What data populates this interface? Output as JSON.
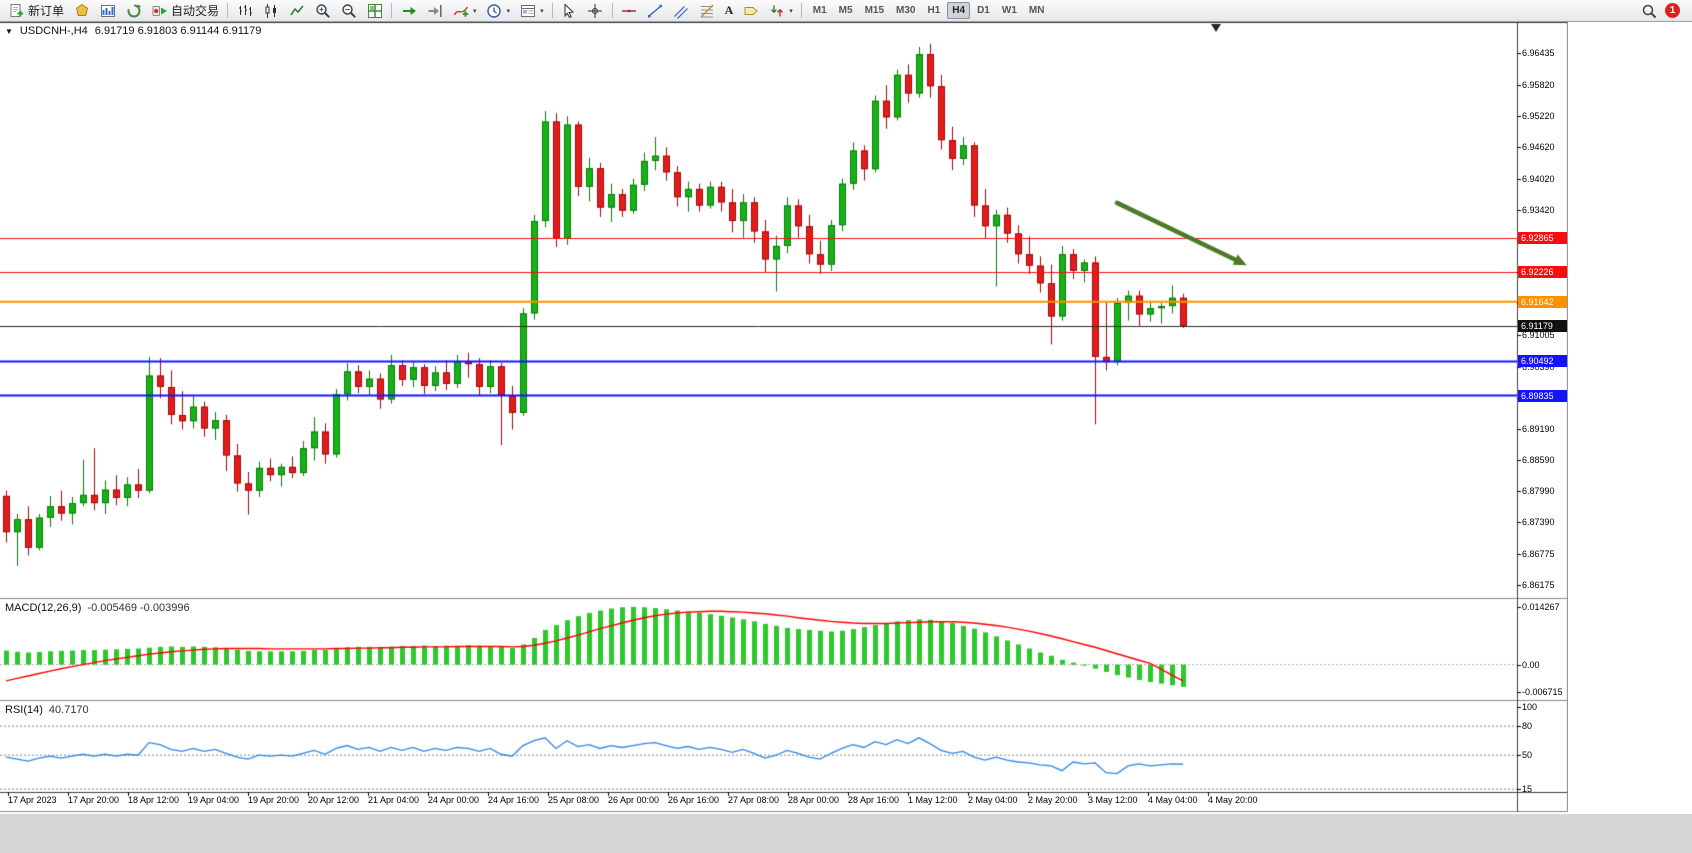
{
  "toolbar": {
    "new_order_label": "新订单",
    "autotrading_label": "自动交易",
    "text_tool_label": "A",
    "timeframes": [
      "M1",
      "M5",
      "M15",
      "M30",
      "H1",
      "H4",
      "D1",
      "W1",
      "MN"
    ],
    "active_timeframe": "H4",
    "notification_badge": "1"
  },
  "chart": {
    "symbol_period": "USDCNH-,H4",
    "ohlc_readout": "6.91719 6.91803 6.91144 6.91179"
  },
  "indicators": {
    "macd": {
      "label": "MACD(12,26,9)",
      "values": "-0.005469 -0.003996",
      "axis_labels": [
        "0.014267",
        "0.00",
        "-0.006715"
      ]
    },
    "rsi": {
      "label": "RSI(14)",
      "value": "40.7170",
      "axis_labels": [
        "100",
        "80",
        "50",
        "15"
      ]
    }
  },
  "chart_data": {
    "type": "candlestick",
    "symbol": "USDCNH-",
    "timeframe": "H4",
    "price_range": {
      "max": 6.97,
      "min": 6.8595
    },
    "price_axis_labels": [
      "6.96435",
      "6.95820",
      "6.95220",
      "6.94620",
      "6.94020",
      "6.93420",
      "6.92820",
      "6.92220",
      "6.91620",
      "6.91005",
      "6.90390",
      "6.89790",
      "6.89190",
      "6.88590",
      "6.87990",
      "6.87390",
      "6.86775",
      "6.86175"
    ],
    "time_axis_labels": [
      "17 Apr 2023",
      "17 Apr 20:00",
      "18 Apr 12:00",
      "19 Apr 04:00",
      "19 Apr 20:00",
      "20 Apr 12:00",
      "21 Apr 04:00",
      "24 Apr 00:00",
      "24 Apr 16:00",
      "25 Apr 08:00",
      "26 Apr 00:00",
      "26 Apr 16:00",
      "27 Apr 08:00",
      "28 Apr 00:00",
      "28 Apr 16:00",
      "1 May 12:00",
      "2 May 04:00",
      "2 May 20:00",
      "3 May 12:00",
      "4 May 04:00",
      "4 May 20:00"
    ],
    "candles": [
      [
        6.879,
        6.88,
        6.87,
        6.872
      ],
      [
        6.872,
        6.8755,
        6.8655,
        6.8745
      ],
      [
        6.8745,
        6.877,
        6.8675,
        6.869
      ],
      [
        6.869,
        6.8755,
        6.8685,
        6.8748
      ],
      [
        6.8748,
        6.879,
        6.873,
        6.877
      ],
      [
        6.877,
        6.88,
        6.8742,
        6.8756
      ],
      [
        6.8756,
        6.8788,
        6.8735,
        6.8776
      ],
      [
        6.8776,
        6.886,
        6.877,
        6.8792
      ],
      [
        6.8792,
        6.8882,
        6.8762,
        6.8776
      ],
      [
        6.8776,
        6.882,
        6.8755,
        6.8802
      ],
      [
        6.8802,
        6.883,
        6.8772,
        6.8786
      ],
      [
        6.8786,
        6.8826,
        6.877,
        6.8812
      ],
      [
        6.8812,
        6.8842,
        6.8786,
        6.88
      ],
      [
        6.88,
        6.9058,
        6.8795,
        6.9022
      ],
      [
        6.9022,
        6.9056,
        6.8978,
        6.9
      ],
      [
        6.9,
        6.9032,
        6.8928,
        6.8946
      ],
      [
        6.8946,
        6.8992,
        6.8918,
        6.8934
      ],
      [
        6.8934,
        6.8982,
        6.892,
        6.8962
      ],
      [
        6.8962,
        6.8972,
        6.8904,
        6.892
      ],
      [
        6.892,
        6.8952,
        6.8898,
        6.8936
      ],
      [
        6.8936,
        6.8946,
        6.8838,
        6.8868
      ],
      [
        6.8868,
        6.889,
        6.8798,
        6.8814
      ],
      [
        6.8814,
        6.8836,
        6.8754,
        6.88
      ],
      [
        6.88,
        6.8856,
        6.8788,
        6.8844
      ],
      [
        6.8844,
        6.8862,
        6.8818,
        6.883
      ],
      [
        6.883,
        6.8852,
        6.8808,
        6.8846
      ],
      [
        6.8846,
        6.8866,
        6.8824,
        6.8834
      ],
      [
        6.8834,
        6.8896,
        6.8828,
        6.8882
      ],
      [
        6.8882,
        6.8942,
        6.8858,
        6.8914
      ],
      [
        6.8914,
        6.893,
        6.8852,
        6.887
      ],
      [
        6.887,
        6.8996,
        6.8864,
        6.8986
      ],
      [
        6.8986,
        6.9046,
        6.8974,
        6.903
      ],
      [
        6.903,
        6.9042,
        6.8988,
        6.9
      ],
      [
        6.9,
        6.9032,
        6.8984,
        6.9016
      ],
      [
        6.9016,
        6.9026,
        6.8958,
        6.8976
      ],
      [
        6.8976,
        6.9062,
        6.8968,
        6.9042
      ],
      [
        6.9042,
        6.9052,
        6.9002,
        6.9014
      ],
      [
        6.9014,
        6.9048,
        6.9,
        6.9038
      ],
      [
        6.9038,
        6.9044,
        6.8986,
        6.9002
      ],
      [
        6.9002,
        6.904,
        6.8992,
        6.9028
      ],
      [
        6.9028,
        6.9052,
        6.8994,
        6.9006
      ],
      [
        6.9006,
        6.9062,
        6.8998,
        6.905
      ],
      [
        6.905,
        6.9066,
        6.9018,
        6.9044
      ],
      [
        6.9044,
        6.9056,
        6.8984,
        6.9
      ],
      [
        6.9,
        6.9052,
        6.8988,
        6.904
      ],
      [
        6.904,
        6.9046,
        6.8888,
        6.8984
      ],
      [
        6.8984,
        6.9002,
        6.8918,
        6.895
      ],
      [
        6.895,
        6.9152,
        6.8944,
        6.9142
      ],
      [
        6.9142,
        6.9332,
        6.913,
        6.932
      ],
      [
        6.932,
        6.9532,
        6.9308,
        6.9512
      ],
      [
        6.9512,
        6.9528,
        6.927,
        6.9286
      ],
      [
        6.9286,
        6.9522,
        6.9274,
        6.9506
      ],
      [
        6.9506,
        6.9512,
        6.9368,
        6.9386
      ],
      [
        6.9386,
        6.9442,
        6.9358,
        6.9422
      ],
      [
        6.9422,
        6.9432,
        6.9328,
        6.9346
      ],
      [
        6.9346,
        6.9392,
        6.9318,
        6.9372
      ],
      [
        6.9372,
        6.9382,
        6.9328,
        6.934
      ],
      [
        6.934,
        6.9402,
        6.9334,
        6.939
      ],
      [
        6.939,
        6.9452,
        6.9378,
        6.9436
      ],
      [
        6.9436,
        6.9482,
        6.9418,
        6.9446
      ],
      [
        6.9446,
        6.9462,
        6.9398,
        6.9414
      ],
      [
        6.9414,
        6.9426,
        6.9348,
        6.9366
      ],
      [
        6.9366,
        6.9396,
        6.9338,
        6.9382
      ],
      [
        6.9382,
        6.9392,
        6.9338,
        6.935
      ],
      [
        6.935,
        6.9396,
        6.9344,
        6.9386
      ],
      [
        6.9386,
        6.9396,
        6.9338,
        6.9356
      ],
      [
        6.9356,
        6.9382,
        6.9298,
        6.932
      ],
      [
        6.932,
        6.9372,
        6.9288,
        6.9356
      ],
      [
        6.9356,
        6.9366,
        6.9278,
        6.93
      ],
      [
        6.93,
        6.9322,
        6.9222,
        6.9246
      ],
      [
        6.9246,
        6.9292,
        6.9184,
        6.9272
      ],
      [
        6.9272,
        6.9366,
        6.9258,
        6.935
      ],
      [
        6.935,
        6.9362,
        6.9288,
        6.931
      ],
      [
        6.931,
        6.9332,
        6.9238,
        6.9256
      ],
      [
        6.9256,
        6.9282,
        6.9218,
        6.9236
      ],
      [
        6.9236,
        6.9322,
        6.9224,
        6.9312
      ],
      [
        6.9312,
        6.9402,
        6.93,
        6.9392
      ],
      [
        6.9392,
        6.9472,
        6.938,
        6.9456
      ],
      [
        6.9456,
        6.9466,
        6.9398,
        6.942
      ],
      [
        6.942,
        6.9562,
        6.9414,
        6.9552
      ],
      [
        6.9552,
        6.9582,
        6.9498,
        6.952
      ],
      [
        6.952,
        6.9612,
        6.9514,
        6.9602
      ],
      [
        6.9602,
        6.9622,
        6.9548,
        6.9566
      ],
      [
        6.9566,
        6.9656,
        6.9558,
        6.9642
      ],
      [
        6.9642,
        6.9662,
        6.9558,
        6.958
      ],
      [
        6.958,
        6.9602,
        6.9458,
        6.9476
      ],
      [
        6.9476,
        6.9502,
        6.9418,
        6.944
      ],
      [
        6.944,
        6.9482,
        6.9428,
        6.9466
      ],
      [
        6.9466,
        6.9472,
        6.9328,
        6.935
      ],
      [
        6.935,
        6.9382,
        6.9288,
        6.931
      ],
      [
        6.931,
        6.9342,
        6.9194,
        6.9332
      ],
      [
        6.9332,
        6.9346,
        6.9278,
        6.9296
      ],
      [
        6.9296,
        6.9312,
        6.9238,
        6.9256
      ],
      [
        6.9256,
        6.929,
        6.9218,
        6.9234
      ],
      [
        6.9234,
        6.9252,
        6.9182,
        6.92
      ],
      [
        6.92,
        6.9236,
        6.9082,
        6.9136
      ],
      [
        6.9136,
        6.9272,
        6.9128,
        6.9256
      ],
      [
        6.9256,
        6.9266,
        6.9208,
        6.9224
      ],
      [
        6.9224,
        6.9246,
        6.9202,
        6.924
      ],
      [
        6.924,
        6.9252,
        6.8928,
        6.9058
      ],
      [
        6.9058,
        6.9162,
        6.9032,
        6.9048
      ],
      [
        6.9048,
        6.9172,
        6.9042,
        6.9162
      ],
      [
        6.9162,
        6.9186,
        6.9128,
        6.9176
      ],
      [
        6.9176,
        6.9186,
        6.9118,
        6.914
      ],
      [
        6.914,
        6.9166,
        6.9126,
        6.9152
      ],
      [
        6.9152,
        6.9162,
        6.9122,
        6.9156
      ],
      [
        6.9156,
        6.9196,
        6.9142,
        6.9172
      ],
      [
        6.9172,
        6.918,
        6.9114,
        6.9118
      ]
    ],
    "horizontal_lines": [
      {
        "price": 6.92865,
        "label": "6.92865",
        "color": "#f50f0f",
        "width": 1
      },
      {
        "price": 6.92226,
        "label": "6.92226",
        "color": "#f50f0f",
        "width": 1
      },
      {
        "price": 6.91642,
        "label": "6.91642",
        "color": "#ff9100",
        "width": 2
      },
      {
        "price": 6.90492,
        "label": "6.90492",
        "color": "#1414ff",
        "width": 2
      },
      {
        "price": 6.89835,
        "label": "6.89835",
        "color": "#1414ff",
        "width": 2
      }
    ],
    "bid_line": {
      "price": 6.91179,
      "label": "6.91179",
      "color": "#2b2b2b",
      "box_color": "#111111"
    },
    "arrow": {
      "from_index": 101,
      "from_price": 6.9355,
      "to_index": 112.8,
      "to_price": 6.9235,
      "color": "#4d7a26"
    },
    "shift_marker_index": 110,
    "macd": {
      "range": {
        "max": 0.016,
        "min": -0.0085
      },
      "zero_level": 0,
      "hist_color": "#2ec82e",
      "signal_color": "#ff0000",
      "histogram": [
        0.0035,
        0.0032,
        0.003,
        0.0031,
        0.0033,
        0.0034,
        0.0035,
        0.0036,
        0.0036,
        0.0037,
        0.0038,
        0.0039,
        0.004,
        0.0042,
        0.0044,
        0.0045,
        0.0044,
        0.0045,
        0.0044,
        0.0043,
        0.004,
        0.0037,
        0.0034,
        0.0033,
        0.0033,
        0.0033,
        0.0033,
        0.0034,
        0.0036,
        0.0036,
        0.004,
        0.0043,
        0.0044,
        0.0044,
        0.0043,
        0.0045,
        0.0046,
        0.0046,
        0.0047,
        0.0046,
        0.0047,
        0.0046,
        0.0048,
        0.0047,
        0.0045,
        0.0044,
        0.0041,
        0.005,
        0.0066,
        0.0086,
        0.0098,
        0.011,
        0.012,
        0.0128,
        0.0134,
        0.0139,
        0.0142,
        0.0143,
        0.0142,
        0.014,
        0.0137,
        0.0134,
        0.0131,
        0.0128,
        0.0125,
        0.0121,
        0.0117,
        0.0112,
        0.0107,
        0.0101,
        0.0096,
        0.0091,
        0.0088,
        0.0086,
        0.0084,
        0.0082,
        0.0084,
        0.0088,
        0.0093,
        0.0098,
        0.0103,
        0.0107,
        0.011,
        0.0112,
        0.0111,
        0.0108,
        0.0103,
        0.0096,
        0.0089,
        0.008,
        0.007,
        0.006,
        0.005,
        0.004,
        0.003,
        0.0022,
        0.0012,
        0.0005,
        -0.0002,
        -0.001,
        -0.0018,
        -0.0026,
        -0.0032,
        -0.0038,
        -0.0043,
        -0.0047,
        -0.0051,
        -0.0055
      ],
      "signal": [
        -0.004,
        -0.0034,
        -0.0028,
        -0.0022,
        -0.0016,
        -0.001,
        -0.0005,
        0,
        0.0005,
        0.001,
        0.0014,
        0.0018,
        0.0022,
        0.0026,
        0.0029,
        0.0032,
        0.0034,
        0.0036,
        0.0038,
        0.0039,
        0.004,
        0.004,
        0.004,
        0.004,
        0.0039,
        0.0039,
        0.0039,
        0.0039,
        0.0039,
        0.0039,
        0.004,
        0.004,
        0.0041,
        0.0041,
        0.0042,
        0.0042,
        0.0043,
        0.0043,
        0.0044,
        0.0044,
        0.0044,
        0.0045,
        0.0045,
        0.0045,
        0.0045,
        0.0045,
        0.0044,
        0.0045,
        0.0048,
        0.0053,
        0.0059,
        0.0066,
        0.0073,
        0.0081,
        0.0089,
        0.0096,
        0.0103,
        0.011,
        0.0116,
        0.0121,
        0.0125,
        0.0128,
        0.013,
        0.0131,
        0.0132,
        0.0132,
        0.0131,
        0.013,
        0.0128,
        0.0126,
        0.0123,
        0.012,
        0.0116,
        0.0113,
        0.011,
        0.0107,
        0.0105,
        0.0103,
        0.0102,
        0.0102,
        0.0102,
        0.0103,
        0.0104,
        0.0105,
        0.0106,
        0.0106,
        0.0106,
        0.0105,
        0.0103,
        0.01,
        0.0097,
        0.0093,
        0.0088,
        0.0083,
        0.0077,
        0.0071,
        0.0064,
        0.0057,
        0.005,
        0.0043,
        0.0035,
        0.0027,
        0.0019,
        0.0011,
        0.0003,
        -0.0011,
        -0.0026,
        -0.004
      ]
    },
    "rsi": {
      "range": {
        "max": 105,
        "min": 12
      },
      "levels": [
        80,
        50,
        15
      ],
      "color": "#2f86e8",
      "values": [
        48,
        46,
        44,
        47,
        49,
        47,
        49,
        51,
        49,
        51,
        49,
        51,
        50,
        63,
        61,
        56,
        54,
        57,
        54,
        56,
        52,
        48,
        46,
        50,
        49,
        50,
        49,
        52,
        55,
        51,
        57,
        60,
        56,
        58,
        54,
        58,
        55,
        58,
        54,
        57,
        55,
        58,
        57,
        54,
        57,
        51,
        49,
        60,
        65,
        68,
        57,
        65,
        59,
        61,
        57,
        60,
        58,
        60,
        62,
        63,
        60,
        57,
        59,
        56,
        58,
        56,
        53,
        56,
        52,
        47,
        50,
        55,
        52,
        48,
        46,
        52,
        57,
        61,
        58,
        64,
        61,
        66,
        62,
        68,
        62,
        55,
        52,
        54,
        48,
        45,
        48,
        45,
        43,
        42,
        40,
        39,
        34,
        43,
        41,
        42,
        32,
        31,
        39,
        41,
        39,
        40,
        41,
        40.7
      ]
    },
    "style": {
      "up_fill": "#16b316",
      "up_border": "#0c7a0c",
      "down_fill": "#e51c1c",
      "down_border": "#9e0b0b",
      "background": "#ffffff",
      "border": "#404040"
    }
  }
}
